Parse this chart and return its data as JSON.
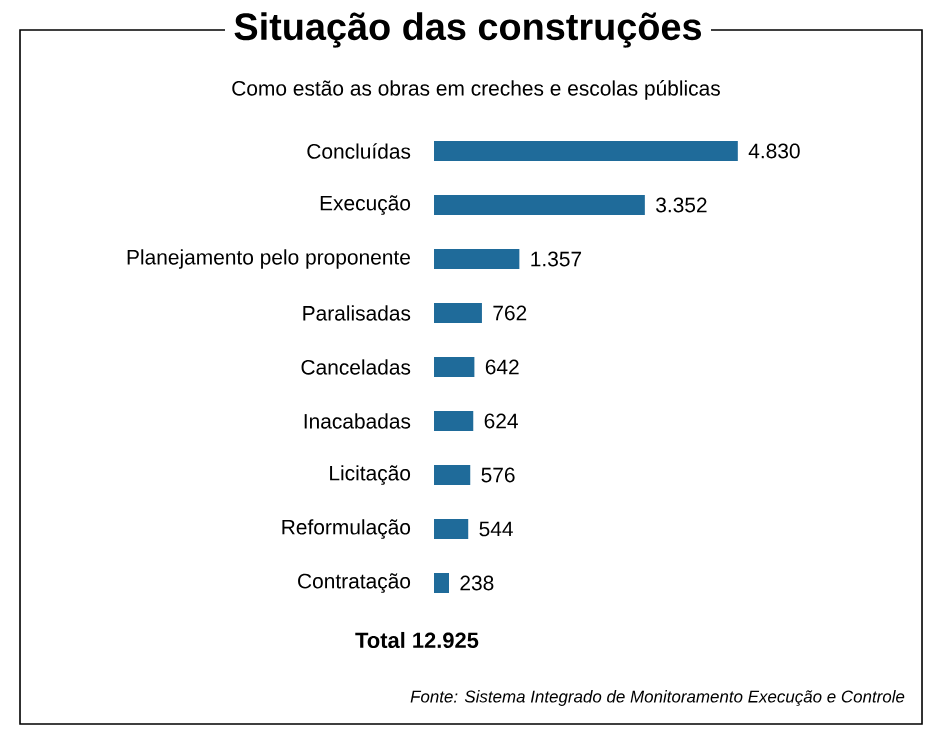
{
  "chart_data": {
    "type": "bar",
    "orientation": "horizontal",
    "relative": false,
    "title": "Situação das construções",
    "subtitle": "Como estão as obras em creches e escolas públicas",
    "categories": [
      "Concluídas",
      "Execução",
      "Planejamento pelo proponente",
      "Paralisadas",
      "Canceladas",
      "Inacabadas",
      "Licitação",
      "Reformulação",
      "Contratação"
    ],
    "values": [
      4830,
      3352,
      1357,
      762,
      642,
      624,
      576,
      544,
      238
    ],
    "value_labels": [
      "4.830",
      "3.352",
      "1.357",
      "762",
      "642",
      "624",
      "576",
      "544",
      "238"
    ],
    "color": "#1f6b9a",
    "annotations": [
      "Total 12.925",
      "Fonte: Sistema Integrado de Monitoramento Execução e Controle"
    ]
  }
}
